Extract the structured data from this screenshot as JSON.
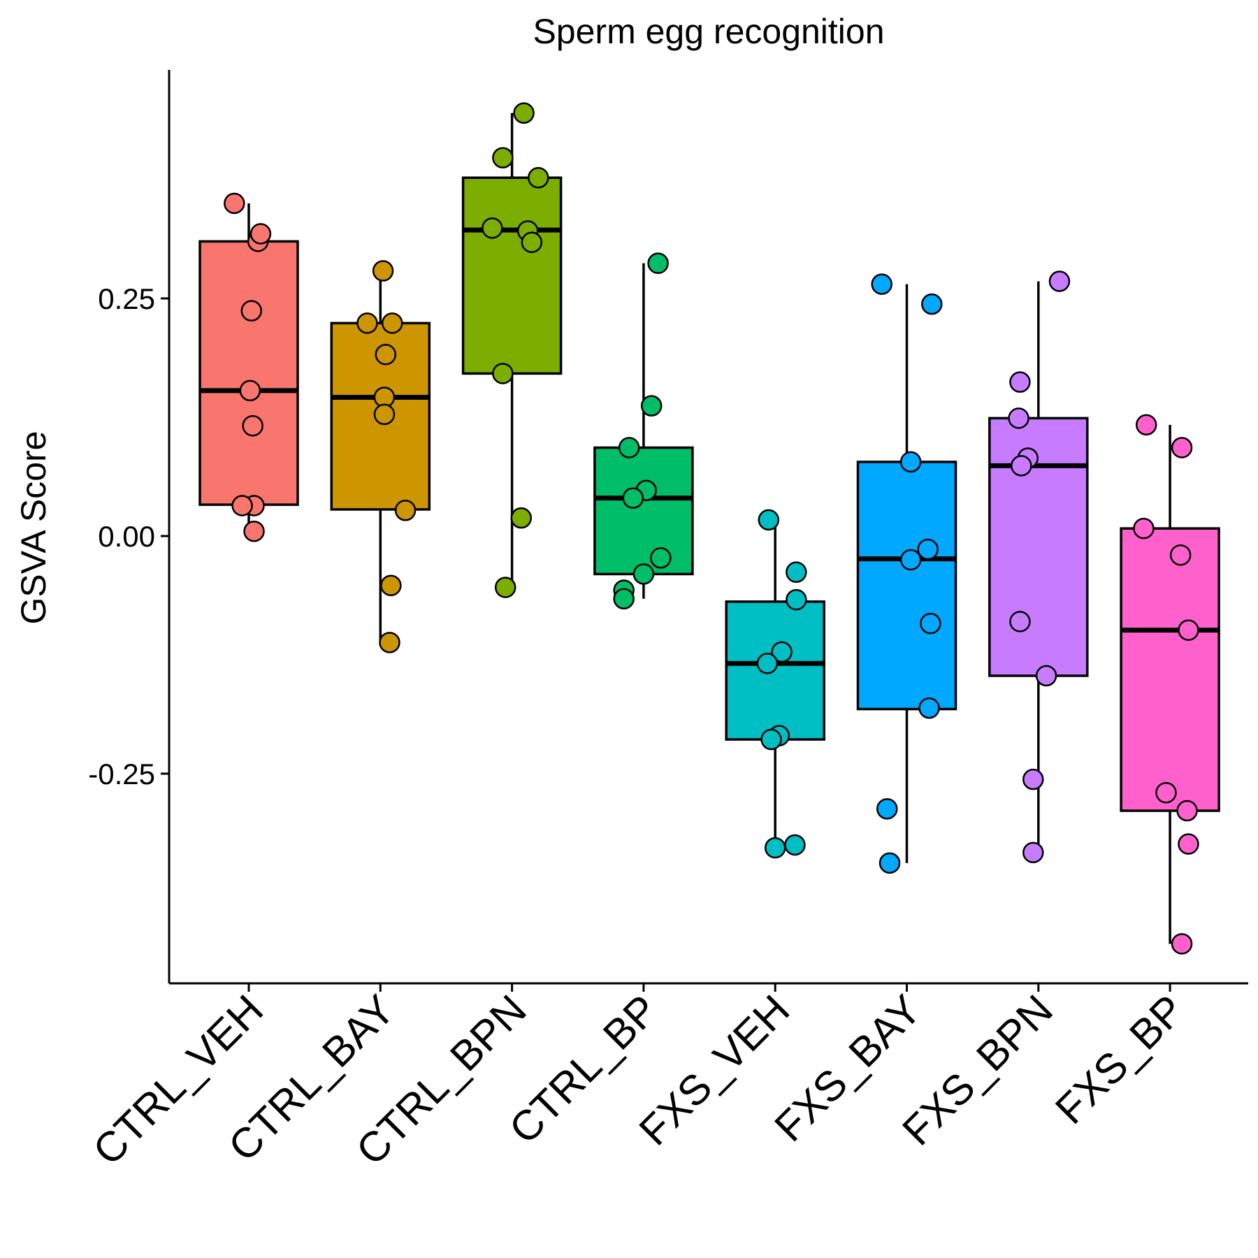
{
  "chart_data": {
    "type": "boxplot",
    "title": "Sperm egg recognition",
    "xlabel": "",
    "ylabel": "GSVA Score",
    "ylim": [
      -0.47,
      0.49
    ],
    "yticks": [
      0.25,
      0.0,
      -0.25
    ],
    "ytick_labels": [
      "0.25",
      "0.00",
      "-0.25"
    ],
    "legend": "none",
    "grid": false,
    "categories": [
      "CTRL_VEH",
      "CTRL_BAY",
      "CTRL_BPN",
      "CTRL_BP",
      "FXS_VEH",
      "FXS_BAY",
      "FXS_BPN",
      "FXS_BP"
    ],
    "colors": [
      "#F8766D",
      "#CD9600",
      "#7CAE00",
      "#00BE67",
      "#00BFC4",
      "#00A9FF",
      "#C77CFF",
      "#FF61CC"
    ],
    "boxes": [
      {
        "min": 0.005,
        "q1": 0.033,
        "median": 0.153,
        "q3": 0.31,
        "max": 0.35
      },
      {
        "min": -0.112,
        "q1": 0.028,
        "median": 0.146,
        "q3": 0.224,
        "max": 0.279
      },
      {
        "min": -0.054,
        "q1": 0.171,
        "median": 0.322,
        "q3": 0.377,
        "max": 0.445
      },
      {
        "min": -0.066,
        "q1": -0.04,
        "median": 0.04,
        "q3": 0.093,
        "max": 0.287
      },
      {
        "min": -0.328,
        "q1": -0.214,
        "median": -0.134,
        "q3": -0.069,
        "max": 0.017
      },
      {
        "min": -0.344,
        "q1": -0.182,
        "median": -0.024,
        "q3": 0.078,
        "max": 0.265
      },
      {
        "min": -0.333,
        "q1": -0.147,
        "median": 0.074,
        "q3": 0.124,
        "max": 0.268
      },
      {
        "min": -0.429,
        "q1": -0.289,
        "median": -0.099,
        "q3": 0.008,
        "max": 0.117
      }
    ],
    "points": [
      [
        [
          -0.11,
          0.35
        ],
        [
          0.07,
          0.31
        ],
        [
          0.09,
          0.318
        ],
        [
          0.02,
          0.237
        ],
        [
          0.01,
          0.153
        ],
        [
          0.03,
          0.116
        ],
        [
          0.04,
          0.032
        ],
        [
          -0.05,
          0.032
        ],
        [
          0.04,
          0.005
        ]
      ],
      [
        [
          0.02,
          0.279
        ],
        [
          -0.1,
          0.224
        ],
        [
          0.09,
          0.224
        ],
        [
          0.04,
          0.191
        ],
        [
          0.03,
          0.146
        ],
        [
          0.03,
          0.128
        ],
        [
          0.19,
          0.027
        ],
        [
          0.08,
          -0.052
        ],
        [
          0.07,
          -0.112
        ]
      ],
      [
        [
          0.09,
          0.445
        ],
        [
          -0.07,
          0.398
        ],
        [
          0.2,
          0.377
        ],
        [
          -0.15,
          0.324
        ],
        [
          0.12,
          0.321
        ],
        [
          0.15,
          0.309
        ],
        [
          -0.07,
          0.171
        ],
        [
          0.07,
          0.019
        ],
        [
          -0.05,
          -0.054
        ]
      ],
      [
        [
          0.11,
          0.287
        ],
        [
          0.06,
          0.137
        ],
        [
          -0.11,
          0.093
        ],
        [
          0.02,
          0.048
        ],
        [
          -0.08,
          0.04
        ],
        [
          0.13,
          -0.023
        ],
        [
          0.0,
          -0.04
        ],
        [
          -0.15,
          -0.057
        ],
        [
          -0.15,
          -0.066
        ]
      ],
      [
        [
          -0.05,
          0.017
        ],
        [
          0.16,
          -0.038
        ],
        [
          0.16,
          -0.067
        ],
        [
          0.05,
          -0.122
        ],
        [
          -0.06,
          -0.134
        ],
        [
          0.03,
          -0.21
        ],
        [
          -0.03,
          -0.214
        ],
        [
          0.15,
          -0.325
        ],
        [
          0.0,
          -0.328
        ]
      ],
      [
        [
          -0.19,
          0.265
        ],
        [
          0.19,
          0.244
        ],
        [
          0.03,
          0.078
        ],
        [
          0.16,
          -0.014
        ],
        [
          0.03,
          -0.025
        ],
        [
          0.18,
          -0.092
        ],
        [
          0.17,
          -0.181
        ],
        [
          -0.15,
          -0.287
        ],
        [
          -0.13,
          -0.344
        ]
      ],
      [
        [
          -0.14,
          0.162
        ],
        [
          0.16,
          0.268
        ],
        [
          -0.15,
          0.124
        ],
        [
          -0.08,
          0.082
        ],
        [
          -0.13,
          0.074
        ],
        [
          -0.14,
          -0.09
        ],
        [
          0.06,
          -0.147
        ],
        [
          -0.04,
          -0.256
        ],
        [
          -0.04,
          -0.333
        ]
      ],
      [
        [
          -0.18,
          0.117
        ],
        [
          0.09,
          0.093
        ],
        [
          -0.2,
          0.008
        ],
        [
          0.08,
          -0.02
        ],
        [
          0.14,
          -0.099
        ],
        [
          -0.03,
          -0.27
        ],
        [
          0.13,
          -0.289
        ],
        [
          0.14,
          -0.324
        ],
        [
          0.09,
          -0.429
        ]
      ]
    ]
  }
}
